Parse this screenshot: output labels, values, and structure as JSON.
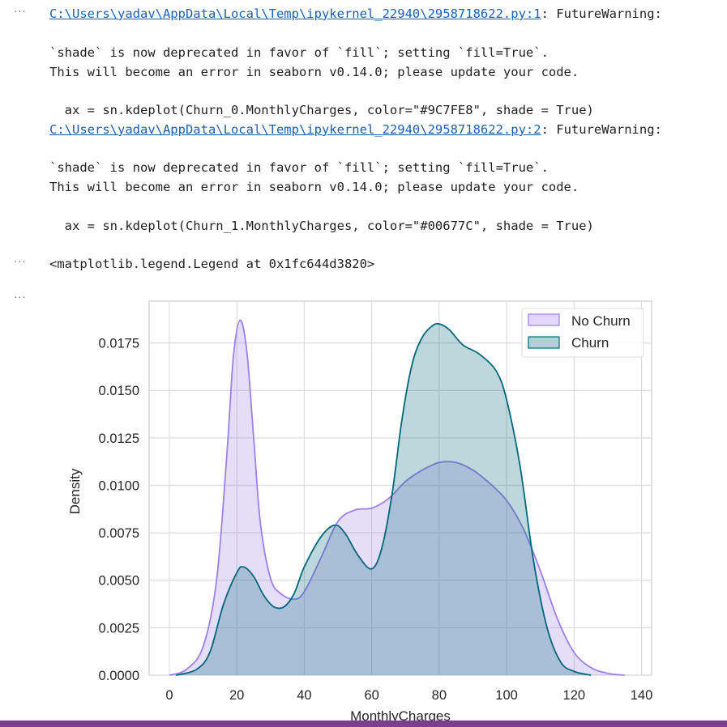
{
  "gutter_marker": "···",
  "warnings": [
    {
      "path": "C:\\Users\\yadav\\AppData\\Local\\Temp\\ipykernel_22940\\2958718622.py:1",
      "suffix": ": FutureWarning:",
      "msg1": "`shade` is now deprecated in favor of `fill`; setting `fill=True`.",
      "msg2": "This will become an error in seaborn v0.14.0; please update your code.",
      "code": "  ax = sn.kdeplot(Churn_0.MonthlyCharges, color=\"#9C7FE8\", shade = True)"
    },
    {
      "path": "C:\\Users\\yadav\\AppData\\Local\\Temp\\ipykernel_22940\\2958718622.py:2",
      "suffix": ": FutureWarning:",
      "msg1": "`shade` is now deprecated in favor of `fill`; setting `fill=True`.",
      "msg2": "This will become an error in seaborn v0.14.0; please update your code.",
      "code": "  ax = sn.kdeplot(Churn_1.MonthlyCharges, color=\"#00677C\", shade = True)"
    }
  ],
  "legend_repr": "<matplotlib.legend.Legend at 0x1fc644d3820>",
  "chart_data": {
    "type": "area",
    "title": "",
    "xlabel": "MonthlyCharges",
    "ylabel": "Density",
    "xlim": [
      -6,
      143
    ],
    "ylim": [
      0,
      0.0197
    ],
    "xticks": [
      "0",
      "20",
      "40",
      "60",
      "80",
      "100",
      "120",
      "140"
    ],
    "yticks": [
      "0.0000",
      "0.0025",
      "0.0050",
      "0.0075",
      "0.0100",
      "0.0125",
      "0.0150",
      "0.0175"
    ],
    "grid": true,
    "legend_position": "top-right",
    "series": [
      {
        "name": "No Churn",
        "color": "#9C7FE8",
        "x": [
          0,
          5,
          10,
          14,
          17,
          19,
          21,
          23,
          25,
          27,
          30,
          33,
          37,
          40,
          45,
          50,
          55,
          60,
          65,
          70,
          75,
          80,
          85,
          90,
          95,
          100,
          105,
          110,
          115,
          120,
          125,
          130,
          135
        ],
        "y": [
          0,
          0.0003,
          0.0015,
          0.005,
          0.0115,
          0.0168,
          0.0187,
          0.017,
          0.0125,
          0.008,
          0.0051,
          0.0043,
          0.004,
          0.0044,
          0.0062,
          0.0081,
          0.0087,
          0.0088,
          0.0093,
          0.0102,
          0.0108,
          0.0112,
          0.0112,
          0.0108,
          0.0101,
          0.0092,
          0.0077,
          0.0055,
          0.003,
          0.0012,
          0.0004,
          0.0001,
          0
        ]
      },
      {
        "name": "Churn",
        "color": "#00677C",
        "x": [
          2,
          8,
          12,
          16,
          20,
          22,
          25,
          28,
          31,
          34,
          37,
          40,
          45,
          49,
          52,
          56,
          60,
          63,
          66,
          69,
          72,
          75,
          78,
          80,
          83,
          87,
          92,
          97,
          100,
          104,
          108,
          112,
          116,
          120,
          125
        ],
        "y": [
          0,
          0.0003,
          0.0012,
          0.0037,
          0.0054,
          0.0057,
          0.0052,
          0.0042,
          0.0036,
          0.0036,
          0.0043,
          0.0057,
          0.0073,
          0.0079,
          0.0075,
          0.0063,
          0.0056,
          0.0067,
          0.0095,
          0.0135,
          0.0164,
          0.0178,
          0.0184,
          0.0185,
          0.0182,
          0.0174,
          0.0169,
          0.016,
          0.0145,
          0.011,
          0.006,
          0.0025,
          0.0007,
          0.0002,
          0
        ]
      }
    ]
  }
}
